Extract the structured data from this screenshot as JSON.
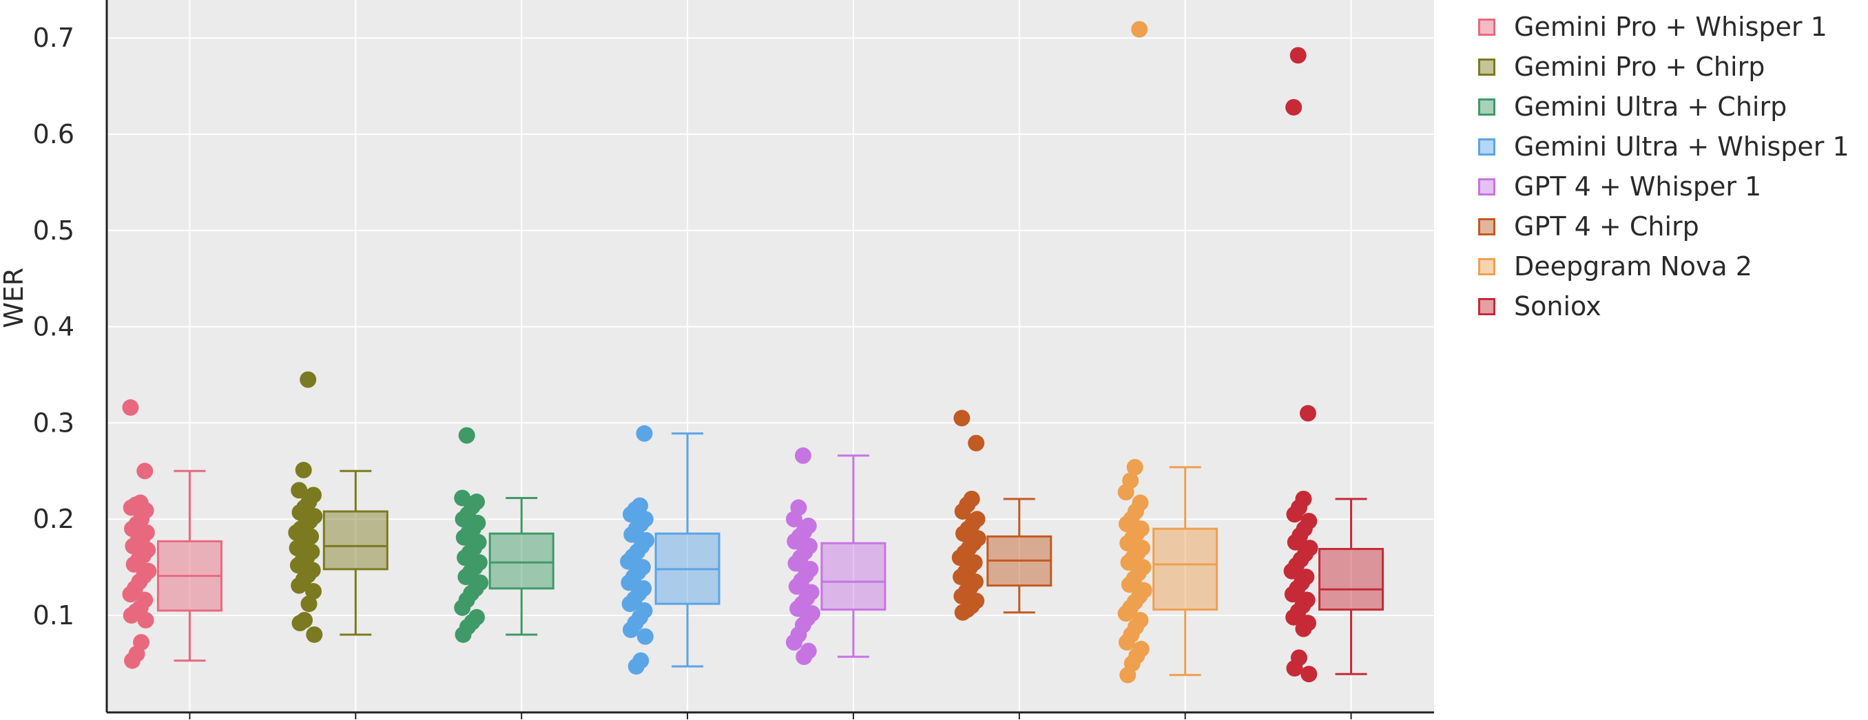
{
  "chart_data": {
    "type": "box",
    "title": "",
    "xlabel": "",
    "ylabel": "WER",
    "ylim": [
      0.0,
      0.73
    ],
    "yticks": [
      0.1,
      0.2,
      0.3,
      0.4,
      0.5,
      0.6,
      0.7
    ],
    "ytick_labels": [
      "0.1",
      "0.2",
      "0.3",
      "0.4",
      "0.5",
      "0.6",
      "0.7"
    ],
    "grid": true,
    "legend_position": "right",
    "series": [
      {
        "name": "Gemini Pro + Whisper 1",
        "color": "#e8697e",
        "box": {
          "min": 0.053,
          "q1": 0.105,
          "median": 0.141,
          "q3": 0.177,
          "max": 0.25
        },
        "points": [
          0.316,
          0.25,
          0.217,
          0.215,
          0.212,
          0.209,
          0.2,
          0.195,
          0.19,
          0.186,
          0.18,
          0.177,
          0.172,
          0.168,
          0.162,
          0.158,
          0.153,
          0.146,
          0.141,
          0.135,
          0.128,
          0.122,
          0.116,
          0.108,
          0.104,
          0.1,
          0.095,
          0.072,
          0.06,
          0.053
        ]
      },
      {
        "name": "Gemini Pro + Chirp",
        "color": "#7c7a20",
        "box": {
          "min": 0.08,
          "q1": 0.148,
          "median": 0.172,
          "q3": 0.208,
          "max": 0.25
        },
        "points": [
          0.345,
          0.251,
          0.23,
          0.225,
          0.218,
          0.212,
          0.207,
          0.203,
          0.198,
          0.194,
          0.19,
          0.186,
          0.182,
          0.178,
          0.174,
          0.17,
          0.166,
          0.161,
          0.157,
          0.152,
          0.147,
          0.142,
          0.137,
          0.131,
          0.125,
          0.112,
          0.095,
          0.092,
          0.08
        ]
      },
      {
        "name": "Gemini Ultra + Chirp",
        "color": "#3f9a67",
        "box": {
          "min": 0.08,
          "q1": 0.128,
          "median": 0.155,
          "q3": 0.185,
          "max": 0.222
        },
        "points": [
          0.287,
          0.222,
          0.218,
          0.213,
          0.205,
          0.2,
          0.196,
          0.19,
          0.186,
          0.181,
          0.176,
          0.17,
          0.165,
          0.16,
          0.155,
          0.15,
          0.145,
          0.14,
          0.134,
          0.128,
          0.123,
          0.116,
          0.108,
          0.098,
          0.093,
          0.088,
          0.08
        ]
      },
      {
        "name": "Gemini Ultra + Whisper 1",
        "color": "#5aa5e6",
        "box": {
          "min": 0.047,
          "q1": 0.112,
          "median": 0.148,
          "q3": 0.185,
          "max": 0.289
        },
        "points": [
          0.289,
          0.214,
          0.21,
          0.205,
          0.2,
          0.195,
          0.19,
          0.184,
          0.178,
          0.172,
          0.166,
          0.161,
          0.156,
          0.15,
          0.145,
          0.14,
          0.134,
          0.128,
          0.123,
          0.117,
          0.112,
          0.105,
          0.098,
          0.092,
          0.085,
          0.078,
          0.053,
          0.047
        ]
      },
      {
        "name": "GPT 4 + Whisper 1",
        "color": "#c774e3",
        "box": {
          "min": 0.057,
          "q1": 0.106,
          "median": 0.135,
          "q3": 0.175,
          "max": 0.266
        },
        "points": [
          0.266,
          0.212,
          0.2,
          0.193,
          0.187,
          0.182,
          0.177,
          0.172,
          0.166,
          0.16,
          0.154,
          0.148,
          0.142,
          0.136,
          0.13,
          0.124,
          0.118,
          0.112,
          0.107,
          0.102,
          0.097,
          0.09,
          0.08,
          0.072,
          0.063,
          0.057
        ]
      },
      {
        "name": "GPT 4 + Chirp",
        "color": "#c25a23",
        "box": {
          "min": 0.103,
          "q1": 0.131,
          "median": 0.157,
          "q3": 0.182,
          "max": 0.221
        },
        "points": [
          0.305,
          0.279,
          0.221,
          0.215,
          0.208,
          0.2,
          0.195,
          0.19,
          0.185,
          0.18,
          0.175,
          0.17,
          0.165,
          0.16,
          0.155,
          0.15,
          0.145,
          0.14,
          0.135,
          0.13,
          0.125,
          0.12,
          0.115,
          0.11,
          0.106,
          0.103
        ]
      },
      {
        "name": "Deepgram Nova 2",
        "color": "#eea04e",
        "box": {
          "min": 0.038,
          "q1": 0.106,
          "median": 0.153,
          "q3": 0.19,
          "max": 0.254
        },
        "points": [
          0.709,
          0.254,
          0.24,
          0.228,
          0.217,
          0.208,
          0.2,
          0.195,
          0.19,
          0.185,
          0.18,
          0.175,
          0.17,
          0.165,
          0.16,
          0.155,
          0.15,
          0.144,
          0.138,
          0.132,
          0.126,
          0.12,
          0.114,
          0.108,
          0.102,
          0.095,
          0.088,
          0.08,
          0.072,
          0.065,
          0.058,
          0.05,
          0.038
        ]
      },
      {
        "name": "Soniox",
        "color": "#c62a37",
        "box": {
          "min": 0.039,
          "q1": 0.106,
          "median": 0.127,
          "q3": 0.169,
          "max": 0.221
        },
        "points": [
          0.682,
          0.628,
          0.31,
          0.221,
          0.212,
          0.205,
          0.198,
          0.19,
          0.183,
          0.176,
          0.17,
          0.164,
          0.158,
          0.152,
          0.146,
          0.14,
          0.134,
          0.128,
          0.122,
          0.116,
          0.11,
          0.104,
          0.098,
          0.092,
          0.086,
          0.056,
          0.045,
          0.039
        ]
      }
    ]
  }
}
